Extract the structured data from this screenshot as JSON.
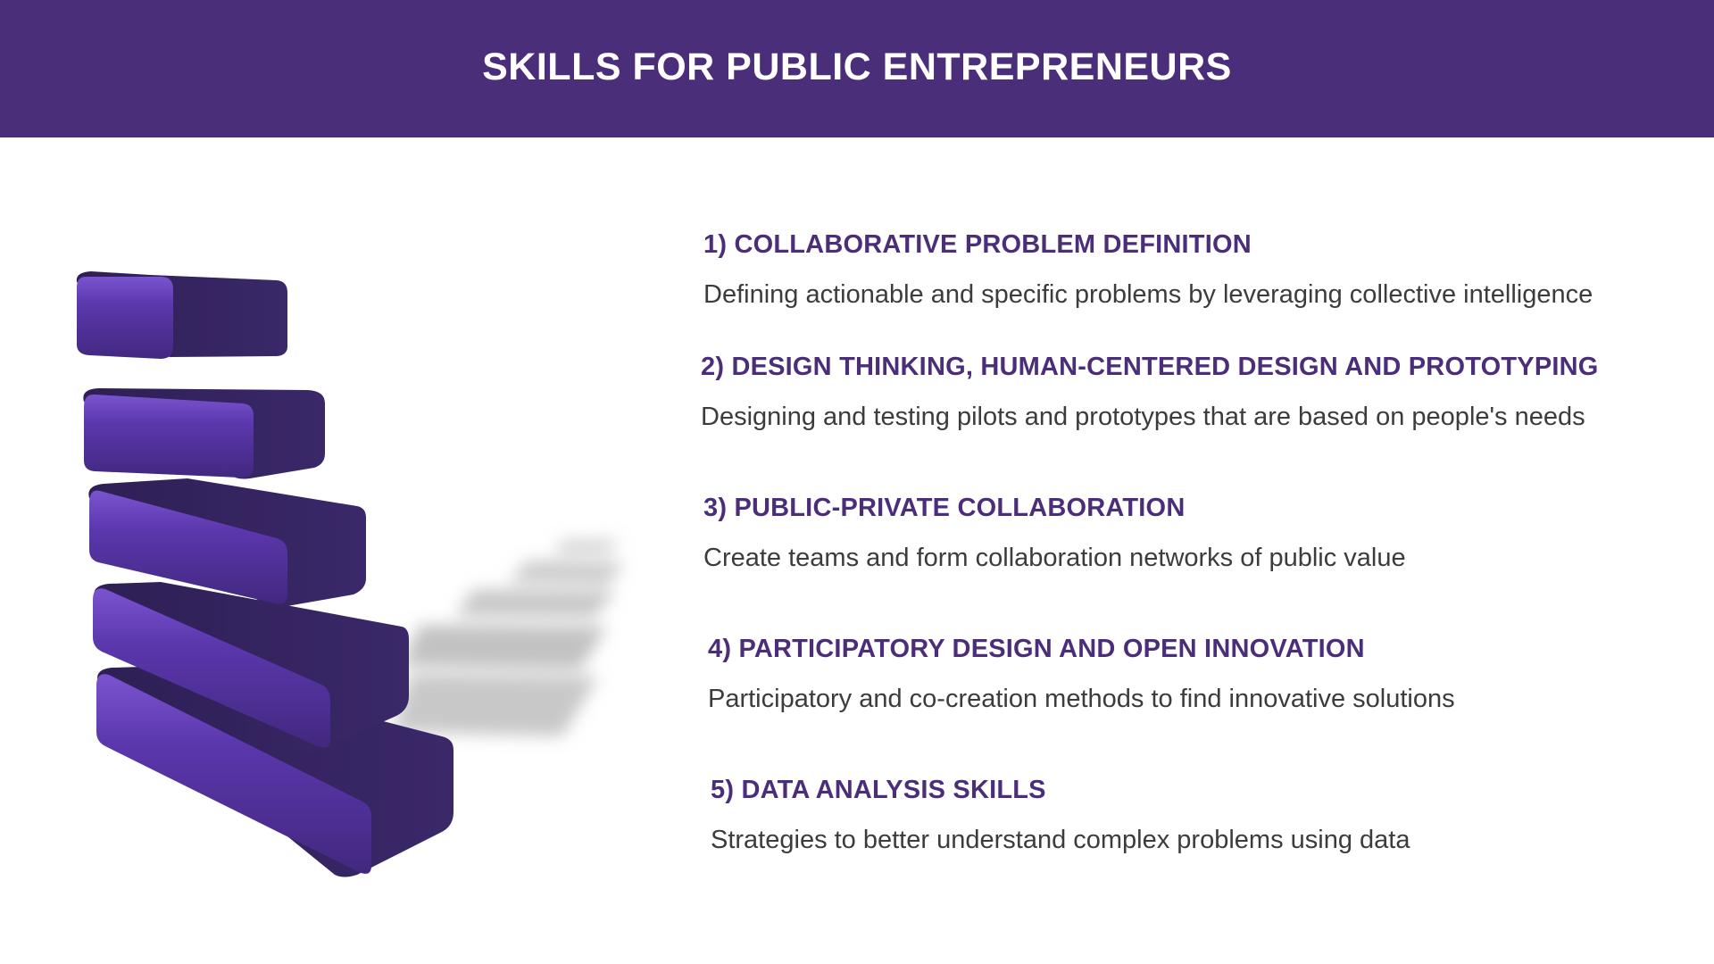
{
  "header": {
    "title": "SKILLS FOR PUBLIC ENTREPRENEURS"
  },
  "colors": {
    "header_bg": "#4b2e7a",
    "accent": "#4b2e7a",
    "block_front": "#5a36a8",
    "block_side": "#352460",
    "body_text": "#3c3c3c"
  },
  "skills": [
    {
      "title": "1) COLLABORATIVE PROBLEM DEFINITION",
      "description": "Defining actionable and specific problems by leveraging collective intelligence"
    },
    {
      "title": "2) DESIGN THINKING, HUMAN-CENTERED DESIGN AND PROTOTYPING",
      "description": "Designing and testing pilots and prototypes that are based on people's needs"
    },
    {
      "title": "3) PUBLIC-PRIVATE COLLABORATION",
      "description": "Create teams and  form collaboration networks of public value"
    },
    {
      "title": "4) PARTICIPATORY DESIGN AND OPEN INNOVATION",
      "description": "Participatory and co-creation methods to find  innovative solutions"
    },
    {
      "title": "5) DATA ANALYSIS SKILLS",
      "description": "Strategies to better understand complex problems using data"
    }
  ]
}
